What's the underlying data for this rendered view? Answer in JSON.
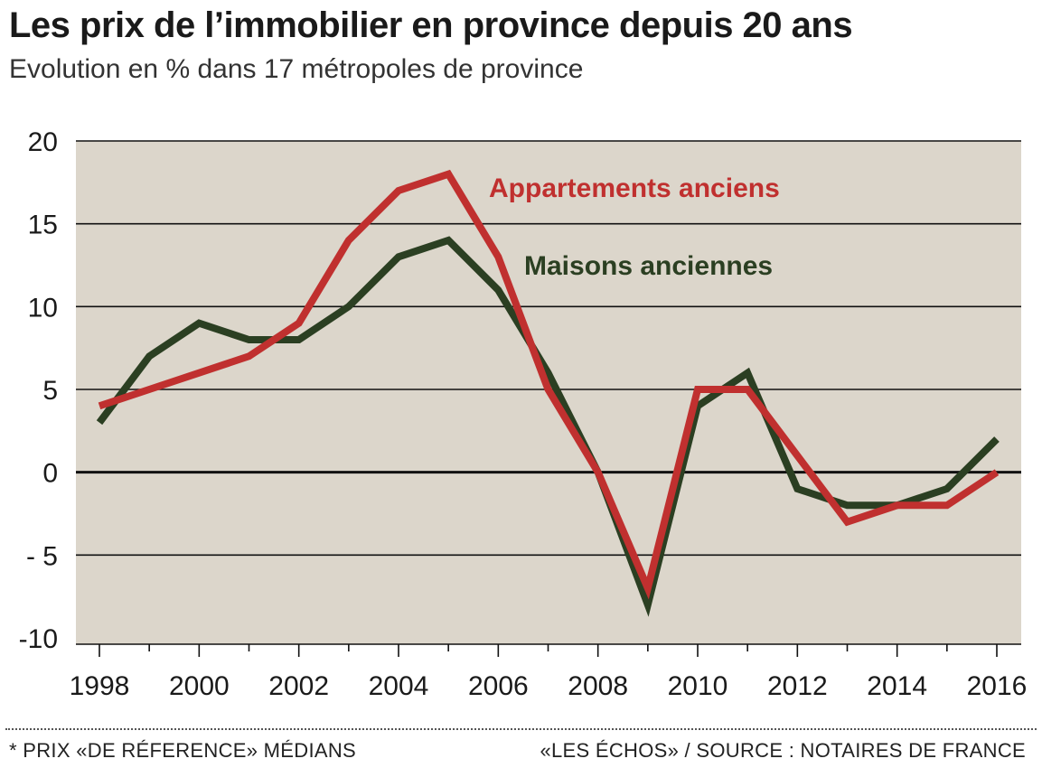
{
  "header": {
    "title": "Les prix de l’immobilier en province depuis 20 ans",
    "subtitle": "Evolution en % dans 17 métropoles de province"
  },
  "footer": {
    "note": "* PRIX «DE RÉFERENCE» MÉDIANS",
    "source": "«LES ÉCHOS» / SOURCE : NOTAIRES DE FRANCE"
  },
  "colors": {
    "plot_background": "#dcd6cb",
    "apartments": "#c0302f",
    "houses": "#2b3f22",
    "grid": "#111111"
  },
  "chart_data": {
    "type": "line",
    "title": "Les prix de l’immobilier en province depuis 20 ans",
    "subtitle": "Evolution en % dans 17 métropoles de province",
    "xlabel": "",
    "ylabel": "",
    "x": [
      1998,
      1999,
      2000,
      2001,
      2002,
      2003,
      2004,
      2005,
      2006,
      2007,
      2008,
      2009,
      2010,
      2011,
      2012,
      2013,
      2014,
      2015,
      2016
    ],
    "x_tick_labels": [
      "1998",
      "2000",
      "2002",
      "2004",
      "2006",
      "2008",
      "2010",
      "2012",
      "2014",
      "2016"
    ],
    "y_tick_labels": [
      "20",
      "15",
      "10",
      "5",
      "0",
      "- 5",
      "-10"
    ],
    "y_ticks": [
      20,
      15,
      10,
      5,
      0,
      -5,
      -10
    ],
    "xlim": [
      1997.76,
      2016.95
    ],
    "ylim": [
      -10,
      20
    ],
    "grid": true,
    "legend": "inline labels",
    "series": [
      {
        "name": "Maisons anciennes",
        "color": "#2b3f22",
        "values": [
          3,
          7,
          9,
          8,
          8,
          10,
          13,
          14,
          11,
          6,
          0,
          -8,
          4,
          6,
          -1,
          -2,
          -2,
          -1,
          2
        ]
      },
      {
        "name": "Appartements anciens",
        "color": "#c0302f",
        "values": [
          4,
          5,
          6,
          7,
          9,
          14,
          17,
          18,
          13,
          5,
          0,
          -7,
          5,
          5,
          1,
          -3,
          -2,
          -2,
          0
        ]
      }
    ]
  }
}
